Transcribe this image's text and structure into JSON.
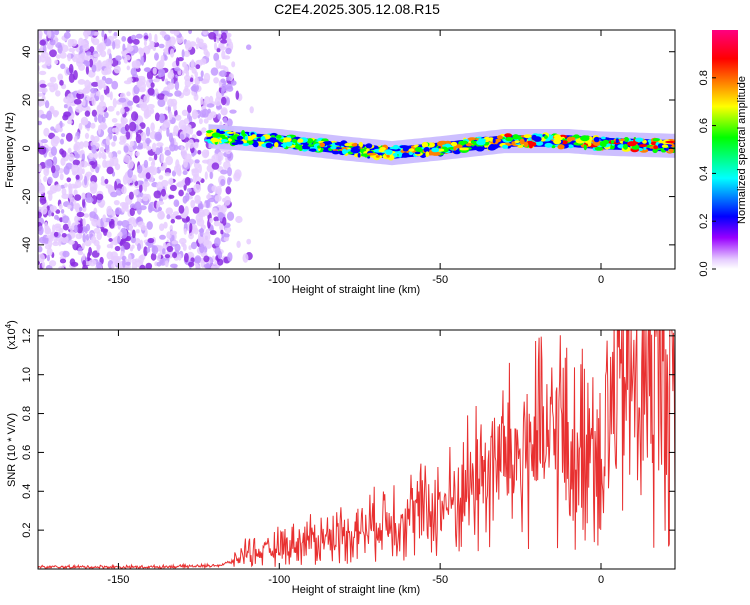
{
  "title": "C2E4.2025.305.12.08.R15",
  "chart_data": [
    {
      "type": "heatmap",
      "xlabel": "Height of straight line (km)",
      "ylabel": "Frequency (Hz)",
      "xlim": [
        -175,
        23
      ],
      "ylim": [
        -50,
        49
      ],
      "xticks": [
        -150,
        -100,
        -50,
        0
      ],
      "yticks": [
        -40,
        -20,
        0,
        20,
        40
      ],
      "colorbar": {
        "label": "Normalized spectral amplitude",
        "range": [
          0.0,
          1.0
        ],
        "ticks": [
          0.0,
          0.2,
          0.4,
          0.6,
          0.8
        ],
        "tick_labels": [
          "0.0",
          "0.2",
          "0.4",
          "0.6",
          "0.8"
        ],
        "colormap": [
          "#ffffff",
          "#e6ccff",
          "#9900ff",
          "#0000ff",
          "#00ffff",
          "#00ff00",
          "#ffff00",
          "#ff8000",
          "#ff0000",
          "#ff0080"
        ]
      },
      "regions": [
        {
          "name": "noise",
          "x_range": [
            -175,
            -115
          ],
          "y_range": [
            -50,
            49
          ],
          "amplitude": 0.1
        },
        {
          "name": "signal band",
          "x_range": [
            -122,
            23
          ],
          "center_freq": [
            [
              -122,
              5
            ],
            [
              -100,
              3
            ],
            [
              -80,
              0
            ],
            [
              -65,
              -2
            ],
            [
              -50,
              0
            ],
            [
              -30,
              3
            ],
            [
              -10,
              3
            ],
            [
              0,
              2
            ],
            [
              23,
              1
            ]
          ],
          "half_width_hz": 4,
          "amplitude_range": [
            0.3,
            0.95
          ]
        }
      ]
    },
    {
      "type": "line",
      "xlabel": "Height of straight line (km)",
      "ylabel": "SNR (10 * V/V)",
      "y_scale_label": "(x10",
      "y_scale_exp": "4",
      "y_scale_close": ")",
      "xlim": [
        -175,
        23
      ],
      "ylim": [
        0,
        1.23
      ],
      "xticks": [
        -150,
        -100,
        -50,
        0
      ],
      "yticks": [
        0.2,
        0.4,
        0.6,
        0.8,
        1.0,
        1.2
      ],
      "series": [
        {
          "name": "SNR",
          "color": "#e83030",
          "x": [
            -175,
            -160,
            -140,
            -125,
            -118,
            -113,
            -110,
            -105,
            -100,
            -95,
            -90,
            -85,
            -80,
            -75,
            -70,
            -65,
            -60,
            -55,
            -50,
            -45,
            -40,
            -35,
            -30,
            -27,
            -25,
            -22,
            -20,
            -17,
            -15,
            -13,
            -11,
            -9,
            -7,
            -5,
            -3,
            0,
            3,
            6,
            8,
            10,
            12,
            15,
            17,
            20,
            23
          ],
          "values": [
            0.01,
            0.01,
            0.01,
            0.015,
            0.02,
            0.05,
            0.1,
            0.08,
            0.12,
            0.13,
            0.15,
            0.16,
            0.19,
            0.2,
            0.23,
            0.26,
            0.27,
            0.3,
            0.32,
            0.36,
            0.45,
            0.52,
            0.58,
            0.55,
            0.6,
            0.62,
            0.66,
            0.6,
            0.67,
            0.75,
            0.62,
            0.62,
            0.48,
            0.8,
            0.7,
            0.62,
            0.82,
            0.88,
            0.98,
            0.95,
            0.9,
            0.95,
            1.0,
            1.02,
            1.0
          ]
        }
      ]
    }
  ]
}
